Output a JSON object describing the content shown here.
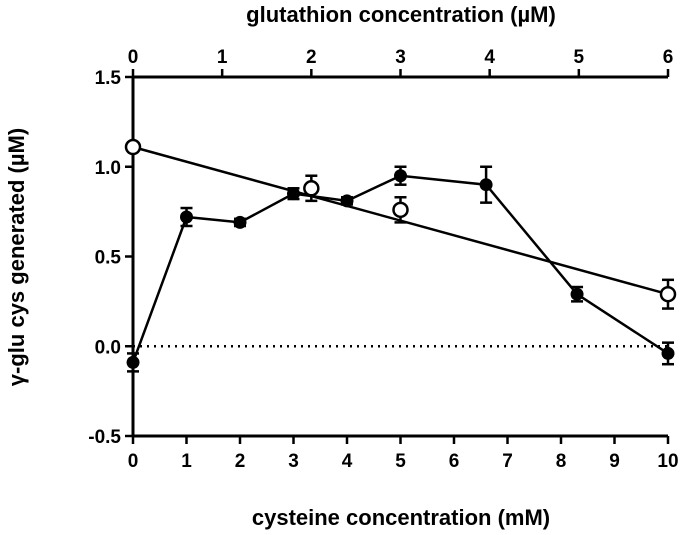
{
  "chart_data": {
    "type": "scatter",
    "title": "",
    "xlabel": "cysteine concentration (mM)",
    "x2label": "glutathion concentration (µM)",
    "ylabel": "γ-glu cys generated (µM)",
    "xlim": [
      0,
      10
    ],
    "x2lim": [
      0,
      6
    ],
    "ylim": [
      -0.5,
      1.5
    ],
    "x_ticks": [
      "0",
      "1",
      "2",
      "3",
      "4",
      "5",
      "6",
      "7",
      "8",
      "9",
      "10"
    ],
    "x2_ticks": [
      "0",
      "1",
      "2",
      "3",
      "4",
      "5",
      "6"
    ],
    "y_ticks": [
      "-0.5",
      "0.0",
      "0.5",
      "1.0",
      "1.5"
    ],
    "reference_line": {
      "y": 0.0,
      "style": "dotted"
    },
    "grid": false,
    "series": [
      {
        "axis": "bottom",
        "marker": "filled-circle",
        "connected": true,
        "color": "#000000",
        "points": [
          {
            "x": 0,
            "y": -0.09,
            "err": 0.05
          },
          {
            "x": 1,
            "y": 0.72,
            "err": 0.05
          },
          {
            "x": 2,
            "y": 0.69,
            "err": 0.02
          },
          {
            "x": 3,
            "y": 0.85,
            "err": 0.03
          },
          {
            "x": 4,
            "y": 0.81,
            "err": 0.02
          },
          {
            "x": 5,
            "y": 0.95,
            "err": 0.05
          },
          {
            "x": 6.6,
            "y": 0.9,
            "err": 0.1
          },
          {
            "x": 8.3,
            "y": 0.29,
            "err": 0.04
          },
          {
            "x": 10,
            "y": -0.04,
            "err": 0.06
          }
        ]
      },
      {
        "axis": "top",
        "marker": "open-circle",
        "connected": false,
        "fit_line": {
          "x": [
            0,
            6
          ],
          "y": [
            1.11,
            0.29
          ]
        },
        "color": "#000000",
        "points": [
          {
            "x": 0,
            "y": 1.11,
            "err": 0.02
          },
          {
            "x": 2,
            "y": 0.88,
            "err": 0.07
          },
          {
            "x": 3,
            "y": 0.76,
            "err": 0.07
          },
          {
            "x": 6,
            "y": 0.29,
            "err": 0.08
          }
        ]
      }
    ]
  }
}
